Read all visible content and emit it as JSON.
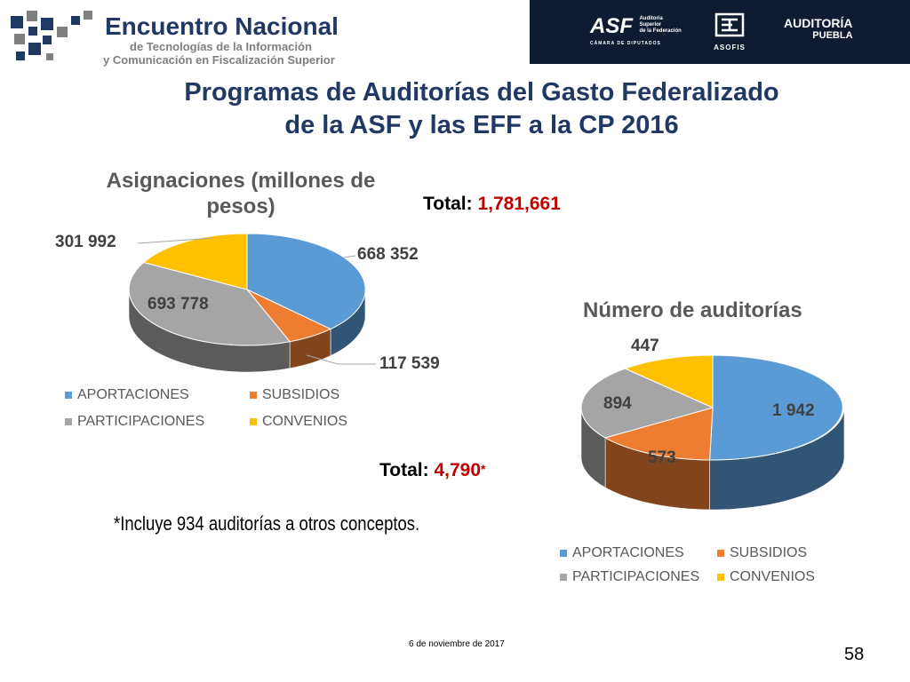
{
  "header": {
    "brand_title": "Encuentro Nacional",
    "brand_subtitle_1": "de Tecnologías de la Información",
    "brand_subtitle_2": "y Comunicación en Fiscalización Superior",
    "partners": {
      "asf_big": "ASF",
      "asf_small_1": "Auditoría",
      "asf_small_2": "Superior",
      "asf_small_3": "de la Federación",
      "asf_foot": "CÁMARA DE DIPUTADOS",
      "asofis": "ASOFIS",
      "puebla_1": "AUDITORÍA",
      "puebla_2": "PUEBLA"
    }
  },
  "slide": {
    "title_line1": "Programas de Auditorías del Gasto Federalizado",
    "title_line2": "de la ASF y las EFF a la  CP 2016",
    "footnote": "*Incluye 934 auditorías a otros conceptos.",
    "footer_date": "6 de noviembre de 2017",
    "slide_number": "58"
  },
  "totals": {
    "left_label": "Total:",
    "left_value": "1,781,661",
    "right_label": "Total:",
    "right_value": "4,790",
    "right_mark": "*"
  },
  "colors": {
    "aportaciones": "#5b9bd5",
    "subsidios": "#ed7d31",
    "participaciones": "#a5a5a5",
    "convenios": "#ffc000"
  },
  "chart_data": [
    {
      "type": "pie",
      "title": "Asignaciones (millones de pesos)",
      "title_line1": "Asignaciones (millones de",
      "title_line2": "pesos)",
      "categories": [
        "APORTACIONES",
        "SUBSIDIOS",
        "PARTICIPACIONES",
        "CONVENIOS"
      ],
      "values": [
        668352,
        117539,
        693778,
        301992
      ],
      "data_labels": [
        "668 352",
        "117 539",
        "693 778",
        "301 992"
      ],
      "legend": "bottom"
    },
    {
      "type": "pie",
      "title": "Número de auditorías",
      "categories": [
        "APORTACIONES",
        "SUBSIDIOS",
        "PARTICIPACIONES",
        "CONVENIOS"
      ],
      "values": [
        1942,
        573,
        894,
        447
      ],
      "data_labels": [
        "1 942",
        "573",
        "894",
        "447"
      ],
      "legend": "bottom"
    }
  ]
}
